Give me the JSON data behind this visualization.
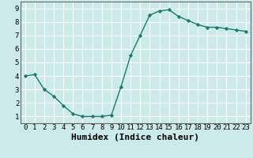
{
  "x": [
    0,
    1,
    2,
    3,
    4,
    5,
    6,
    7,
    8,
    9,
    10,
    11,
    12,
    13,
    14,
    15,
    16,
    17,
    18,
    19,
    20,
    21,
    22,
    23
  ],
  "y": [
    4.0,
    4.1,
    3.0,
    2.5,
    1.8,
    1.2,
    1.0,
    1.0,
    1.0,
    1.1,
    3.2,
    5.5,
    7.0,
    8.5,
    8.8,
    8.9,
    8.4,
    8.1,
    7.8,
    7.6,
    7.6,
    7.5,
    7.4,
    7.3
  ],
  "line_color": "#1a7a6e",
  "marker": "D",
  "markersize": 2.2,
  "linewidth": 1.0,
  "xlabel": "Humidex (Indice chaleur)",
  "xlim": [
    -0.5,
    23.5
  ],
  "ylim": [
    0.5,
    9.5
  ],
  "yticks": [
    1,
    2,
    3,
    4,
    5,
    6,
    7,
    8,
    9
  ],
  "xticks": [
    0,
    1,
    2,
    3,
    4,
    5,
    6,
    7,
    8,
    9,
    10,
    11,
    12,
    13,
    14,
    15,
    16,
    17,
    18,
    19,
    20,
    21,
    22,
    23
  ],
  "bg_color": "#cceaea",
  "grid_color": "#ffffff",
  "tick_label_fontsize": 6.5,
  "xlabel_fontsize": 8.0,
  "spine_color": "#666666"
}
